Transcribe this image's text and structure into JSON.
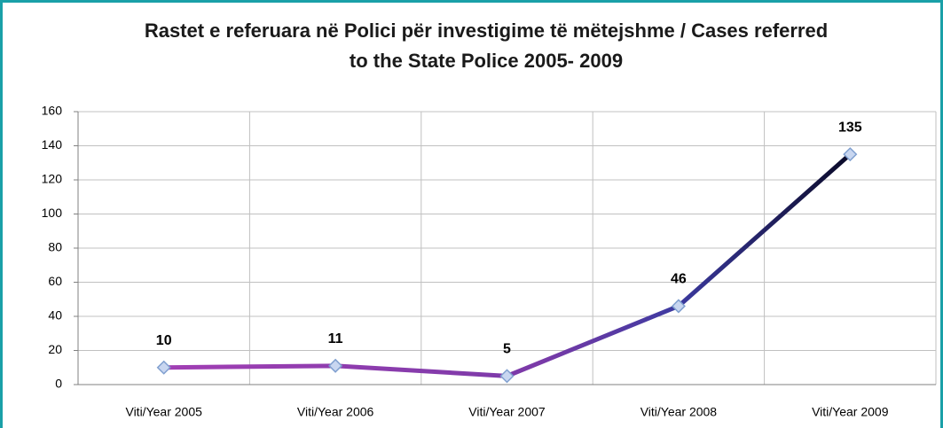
{
  "chart_data": {
    "type": "line",
    "title": [
      "Rastet e referuara në Polici për investigime të mëtejshme / Cases referred",
      "to the State Police 2005- 2009"
    ],
    "categories": [
      "Viti/Year 2005",
      "Viti/Year 2006",
      "Viti/Year 2007",
      "Viti/Year 2008",
      "Viti/Year 2009"
    ],
    "series": [
      {
        "name": "Cases referred",
        "color": "#a23fb4",
        "values": [
          10,
          11,
          5,
          46,
          135
        ]
      }
    ],
    "ylim": [
      0,
      160
    ],
    "yticks": [
      0,
      20,
      40,
      60,
      80,
      100,
      120,
      140,
      160
    ],
    "grid": true
  }
}
